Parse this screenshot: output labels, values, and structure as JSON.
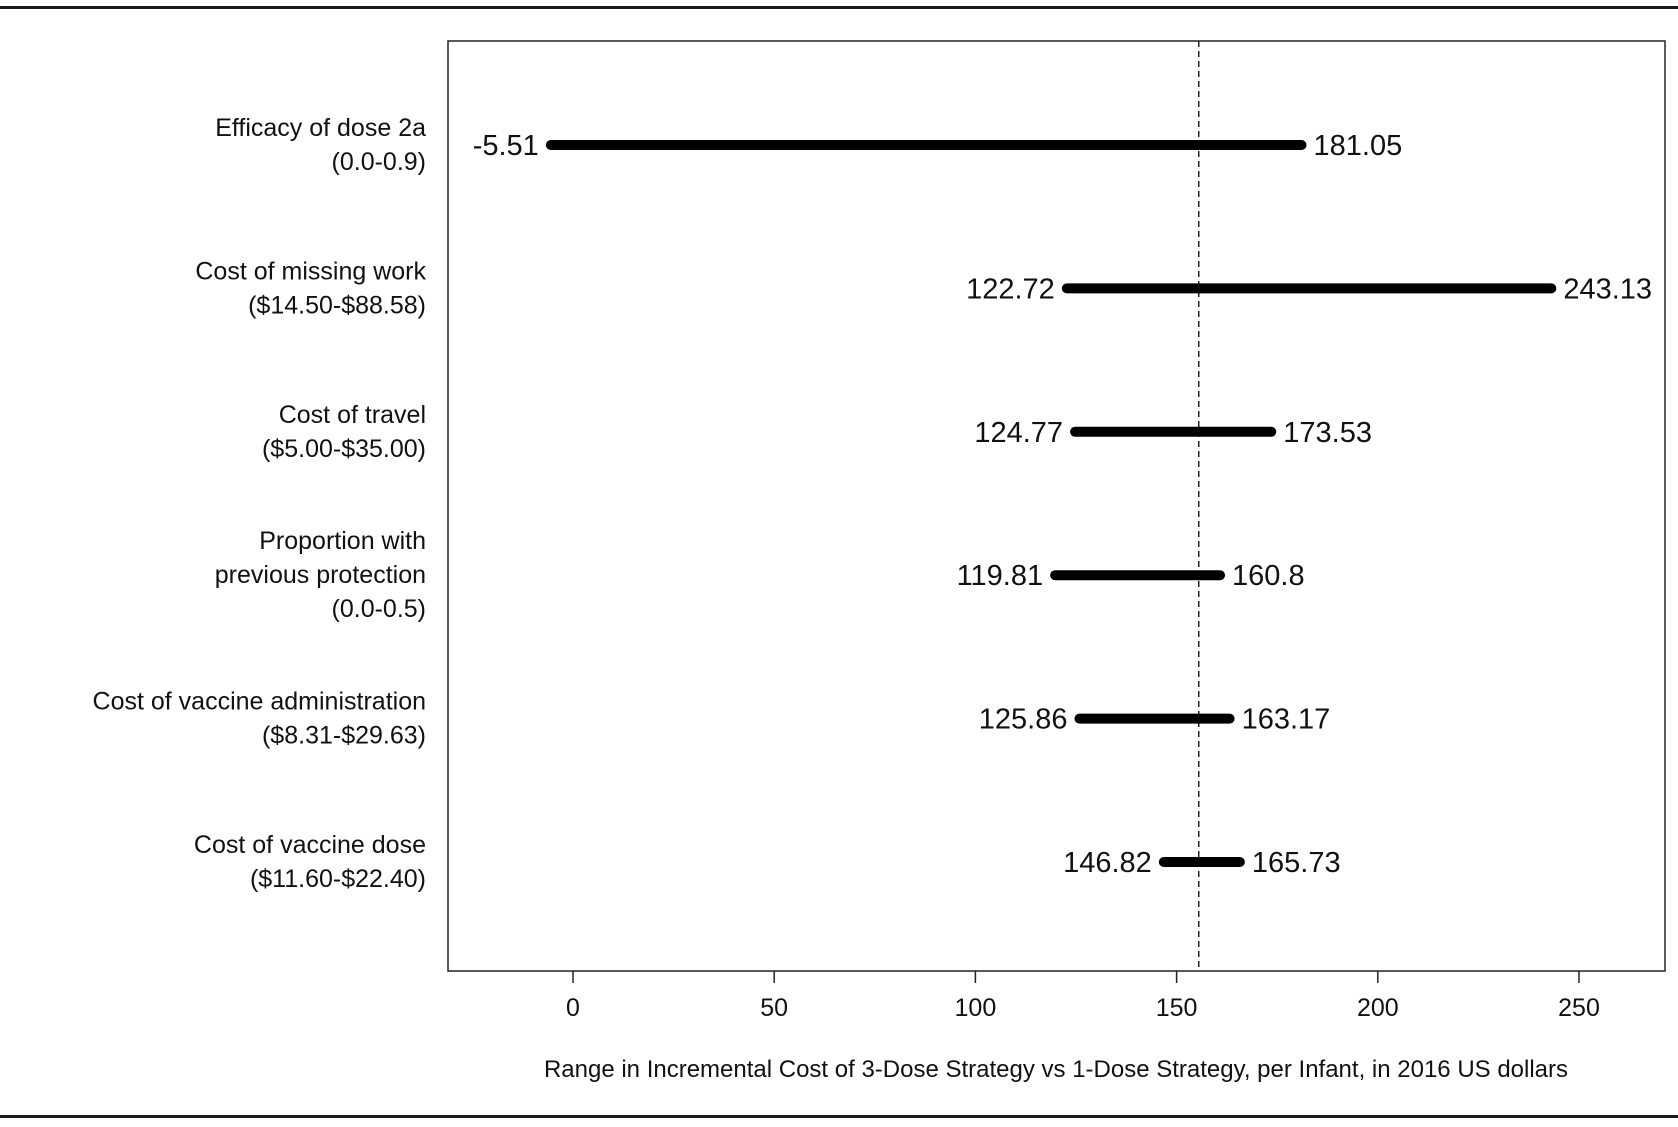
{
  "chart_data": {
    "type": "tornado",
    "title": "",
    "xlabel": "Range in Incremental Cost of 3-Dose Strategy vs 1-Dose Strategy, per Infant, in 2016 US dollars",
    "ylabel": "",
    "xlim": [
      -31,
      272
    ],
    "xticks": [
      0,
      50,
      100,
      150,
      200,
      250
    ],
    "tick_labels": [
      "0",
      "50",
      "100",
      "150",
      "200",
      "250"
    ],
    "base_value": 155.5,
    "base_line_style": "dashed",
    "grid": false,
    "legend": "none",
    "bar_color": "#000000",
    "parameters": [
      {
        "label_lines": [
          "Efficacy of dose 2a",
          "(0.0-0.9)"
        ],
        "low": -5.51,
        "high": 181.05,
        "low_label": "-5.51",
        "high_label": "181.05"
      },
      {
        "label_lines": [
          "Cost of missing work",
          "($14.50-$88.58)"
        ],
        "low": 122.72,
        "high": 243.13,
        "low_label": "122.72",
        "high_label": "243.13"
      },
      {
        "label_lines": [
          "Cost of travel",
          "($5.00-$35.00)"
        ],
        "low": 124.77,
        "high": 173.53,
        "low_label": "124.77",
        "high_label": "173.53"
      },
      {
        "label_lines": [
          "Proportion with",
          "previous protection",
          "(0.0-0.5)"
        ],
        "low": 119.81,
        "high": 160.8,
        "low_label": "119.81",
        "high_label": "160.8"
      },
      {
        "label_lines": [
          "Cost of vaccine administration",
          "($8.31-$29.63)"
        ],
        "low": 125.86,
        "high": 163.17,
        "low_label": "125.86",
        "high_label": "163.17"
      },
      {
        "label_lines": [
          "Cost of vaccine dose",
          "($11.60-$22.40)"
        ],
        "low": 146.82,
        "high": 165.73,
        "low_label": "146.82",
        "high_label": "165.73"
      }
    ]
  }
}
